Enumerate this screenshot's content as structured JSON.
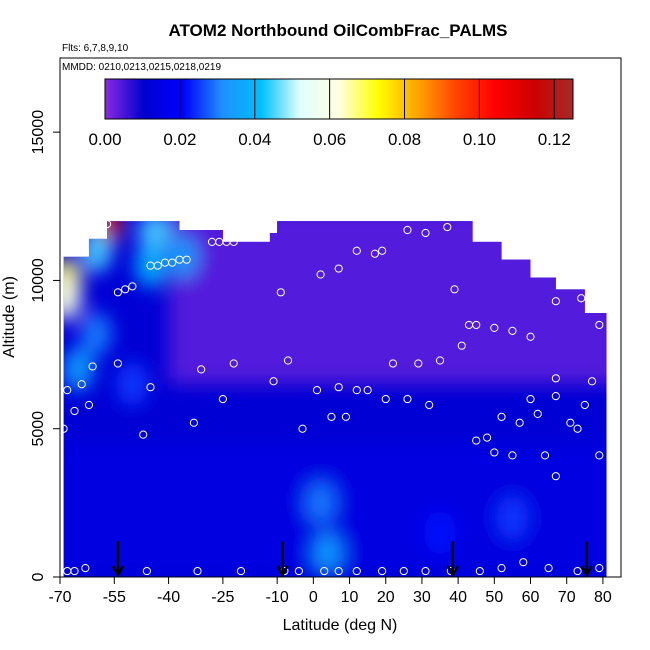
{
  "chart_data": {
    "type": "heatmap",
    "title": "ATOM2 Northbound OilCombFrac_PALMS",
    "flights_text": "Flts: 6,7,8,9,10",
    "dates_text": "MMDD: 0210,0213,0215,0218,0219",
    "xlabel": "Latitude (deg N)",
    "ylabel": "Altitude (m)",
    "xlim": [
      -70,
      85
    ],
    "ylim": [
      0,
      17500
    ],
    "x_ticks": [
      -70,
      -55,
      -40,
      -25,
      -10,
      0,
      10,
      20,
      30,
      40,
      50,
      60,
      70,
      80
    ],
    "x_tick_labels": [
      "-70",
      "-55",
      "-40",
      "-25",
      "-10",
      "0",
      "10",
      "20",
      "30",
      "40",
      "50",
      "60",
      "70",
      "80"
    ],
    "y_ticks": [
      0,
      5000,
      10000,
      15000
    ],
    "y_tick_labels": [
      "0",
      "5000",
      "10000",
      "15000"
    ],
    "colorbar": {
      "min": 0,
      "max": 0.125,
      "ticks": [
        0.0,
        0.02,
        0.04,
        0.06,
        0.08,
        0.1,
        0.12
      ],
      "tick_labels": [
        "0.00",
        "0.02",
        "0.04",
        "0.06",
        "0.08",
        "0.10",
        "0.12"
      ],
      "colors": [
        "#8a2be2",
        "#0000cd",
        "#0000ff",
        "#1e90ff",
        "#00bfff",
        "#e0ffff",
        "#ffffe0",
        "#ffff00",
        "#ffa500",
        "#ff4500",
        "#ff0000",
        "#cd0000",
        "#a52a2a"
      ]
    },
    "arrows_lat": [
      -54,
      -8.5,
      38.5,
      75.5
    ],
    "upper_boundary": [
      {
        "lat": -69,
        "alt": 10800
      },
      {
        "lat": -62,
        "alt": 11400
      },
      {
        "lat": -57,
        "alt": 12000
      },
      {
        "lat": -37,
        "alt": 11700
      },
      {
        "lat": -25,
        "alt": 11300
      },
      {
        "lat": -12,
        "alt": 11600
      },
      {
        "lat": -10,
        "alt": 12000
      },
      {
        "lat": 20,
        "alt": 12000
      },
      {
        "lat": 38,
        "alt": 12000
      },
      {
        "lat": 44,
        "alt": 11300
      },
      {
        "lat": 52,
        "alt": 10700
      },
      {
        "lat": 60,
        "alt": 10100
      },
      {
        "lat": 67,
        "alt": 9700
      },
      {
        "lat": 75,
        "alt": 8900
      },
      {
        "lat": 81,
        "alt": 8000
      }
    ],
    "hotspots": [
      {
        "lat": -57,
        "alt": 11900,
        "value": 0.115
      },
      {
        "lat": -68.5,
        "alt": 10000,
        "value": 0.07
      },
      {
        "lat": -68.5,
        "alt": 9400,
        "value": 0.06
      },
      {
        "lat": -60,
        "alt": 11000,
        "value": 0.045
      },
      {
        "lat": -44,
        "alt": 11600,
        "value": 0.045
      },
      {
        "lat": -45,
        "alt": 10500,
        "value": 0.04
      },
      {
        "lat": -65,
        "alt": 7000,
        "value": 0.035
      },
      {
        "lat": -60,
        "alt": 8200,
        "value": 0.03
      },
      {
        "lat": -36,
        "alt": 10800,
        "value": 0.035
      },
      {
        "lat": 2,
        "alt": 2500,
        "value": 0.03
      },
      {
        "lat": 4,
        "alt": 800,
        "value": 0.035
      },
      {
        "lat": -50,
        "alt": 6500,
        "value": 0.025
      },
      {
        "lat": 55,
        "alt": 2000,
        "value": 0.025
      },
      {
        "lat": 35,
        "alt": 1500,
        "value": 0.022
      }
    ],
    "points": [
      {
        "lat": -68,
        "alt": 6300
      },
      {
        "lat": -66,
        "alt": 5600
      },
      {
        "lat": -64,
        "alt": 6500
      },
      {
        "lat": -62,
        "alt": 5800
      },
      {
        "lat": -69,
        "alt": 5000
      },
      {
        "lat": -61,
        "alt": 7100
      },
      {
        "lat": -54,
        "alt": 7200
      },
      {
        "lat": -45,
        "alt": 6400
      },
      {
        "lat": -47,
        "alt": 4800
      },
      {
        "lat": -33,
        "alt": 5200
      },
      {
        "lat": -31,
        "alt": 7000
      },
      {
        "lat": -25,
        "alt": 6000
      },
      {
        "lat": -22,
        "alt": 7200
      },
      {
        "lat": -11,
        "alt": 6600
      },
      {
        "lat": -7,
        "alt": 7300
      },
      {
        "lat": -3,
        "alt": 5000
      },
      {
        "lat": 1,
        "alt": 6300
      },
      {
        "lat": 5,
        "alt": 5400
      },
      {
        "lat": 7,
        "alt": 6400
      },
      {
        "lat": 9,
        "alt": 5400
      },
      {
        "lat": 12,
        "alt": 6300
      },
      {
        "lat": 15,
        "alt": 6300
      },
      {
        "lat": 20,
        "alt": 6000
      },
      {
        "lat": 22,
        "alt": 7200
      },
      {
        "lat": 26,
        "alt": 6000
      },
      {
        "lat": 29,
        "alt": 7200
      },
      {
        "lat": 32,
        "alt": 5800
      },
      {
        "lat": 35,
        "alt": 7300
      },
      {
        "lat": 17,
        "alt": 10900
      },
      {
        "lat": 19,
        "alt": 11000
      },
      {
        "lat": 12,
        "alt": 11000
      },
      {
        "lat": 7,
        "alt": 10400
      },
      {
        "lat": 2,
        "alt": 10200
      },
      {
        "lat": -9,
        "alt": 9600
      },
      {
        "lat": -22,
        "alt": 11900
      },
      {
        "lat": -20,
        "alt": 11900
      },
      {
        "lat": -28,
        "alt": 11300
      },
      {
        "lat": -26,
        "alt": 11300
      },
      {
        "lat": -24,
        "alt": 11300
      },
      {
        "lat": -22,
        "alt": 11300
      },
      {
        "lat": -54,
        "alt": 9600
      },
      {
        "lat": -52,
        "alt": 9700
      },
      {
        "lat": -50,
        "alt": 9800
      },
      {
        "lat": -45,
        "alt": 10500
      },
      {
        "lat": -43,
        "alt": 10500
      },
      {
        "lat": -41,
        "alt": 10600
      },
      {
        "lat": -39,
        "alt": 10600
      },
      {
        "lat": -37,
        "alt": 10700
      },
      {
        "lat": -35,
        "alt": 10700
      },
      {
        "lat": -57,
        "alt": 11900
      },
      {
        "lat": -66,
        "alt": 11200
      },
      {
        "lat": 26,
        "alt": 11700
      },
      {
        "lat": 31,
        "alt": 11600
      },
      {
        "lat": 37,
        "alt": 11800
      },
      {
        "lat": 39,
        "alt": 9700
      },
      {
        "lat": 41,
        "alt": 7800
      },
      {
        "lat": 43,
        "alt": 8500
      },
      {
        "lat": 45,
        "alt": 8500
      },
      {
        "lat": 50,
        "alt": 8400
      },
      {
        "lat": 55,
        "alt": 8300
      },
      {
        "lat": 60,
        "alt": 8100
      },
      {
        "lat": 67,
        "alt": 9300
      },
      {
        "lat": 74,
        "alt": 9400
      },
      {
        "lat": 79,
        "alt": 8500
      },
      {
        "lat": 45,
        "alt": 4600
      },
      {
        "lat": 48,
        "alt": 4700
      },
      {
        "lat": 50,
        "alt": 4200
      },
      {
        "lat": 52,
        "alt": 5400
      },
      {
        "lat": 55,
        "alt": 4100
      },
      {
        "lat": 57,
        "alt": 5200
      },
      {
        "lat": 60,
        "alt": 6000
      },
      {
        "lat": 62,
        "alt": 5500
      },
      {
        "lat": 64,
        "alt": 4100
      },
      {
        "lat": 67,
        "alt": 6700
      },
      {
        "lat": 67,
        "alt": 6100
      },
      {
        "lat": 67,
        "alt": 3400
      },
      {
        "lat": 71,
        "alt": 5200
      },
      {
        "lat": 73,
        "alt": 5000
      },
      {
        "lat": 75,
        "alt": 5800
      },
      {
        "lat": 77,
        "alt": 6600
      },
      {
        "lat": 79,
        "alt": 4100
      },
      {
        "lat": -68,
        "alt": 200
      },
      {
        "lat": -66,
        "alt": 200
      },
      {
        "lat": -63,
        "alt": 300
      },
      {
        "lat": -46,
        "alt": 200
      },
      {
        "lat": -32,
        "alt": 200
      },
      {
        "lat": -20,
        "alt": 200
      },
      {
        "lat": -8,
        "alt": 200
      },
      {
        "lat": -4,
        "alt": 200
      },
      {
        "lat": 3,
        "alt": 200
      },
      {
        "lat": 7,
        "alt": 200
      },
      {
        "lat": 12,
        "alt": 200
      },
      {
        "lat": 19,
        "alt": 200
      },
      {
        "lat": 25,
        "alt": 200
      },
      {
        "lat": 31,
        "alt": 200
      },
      {
        "lat": 38,
        "alt": 200
      },
      {
        "lat": 46,
        "alt": 200
      },
      {
        "lat": 52,
        "alt": 300
      },
      {
        "lat": 58,
        "alt": 500
      },
      {
        "lat": 65,
        "alt": 300
      },
      {
        "lat": 73,
        "alt": 200
      },
      {
        "lat": 79,
        "alt": 300
      }
    ]
  }
}
